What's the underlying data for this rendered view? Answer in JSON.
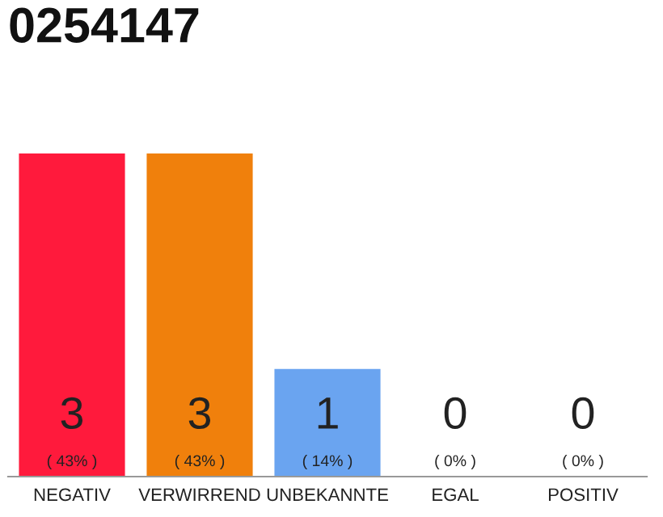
{
  "chart_data": {
    "type": "bar",
    "title": "0254147",
    "categories": [
      "NEGATIV",
      "VERWIRREND",
      "UNBEKANNTE",
      "EGAL",
      "POSITIV"
    ],
    "values": [
      3,
      3,
      1,
      0,
      0
    ],
    "colors": [
      "#ff1a3c",
      "#f0800c",
      "#6aa4f0",
      "#eeeeee",
      "#eeeeee"
    ],
    "value_labels": [
      "3\n( 43% )",
      "3\n( 43% )",
      "1\n( 14% )",
      "0\n( 0% )",
      "0\n( 0% )"
    ],
    "grid": false,
    "legend": false
  }
}
